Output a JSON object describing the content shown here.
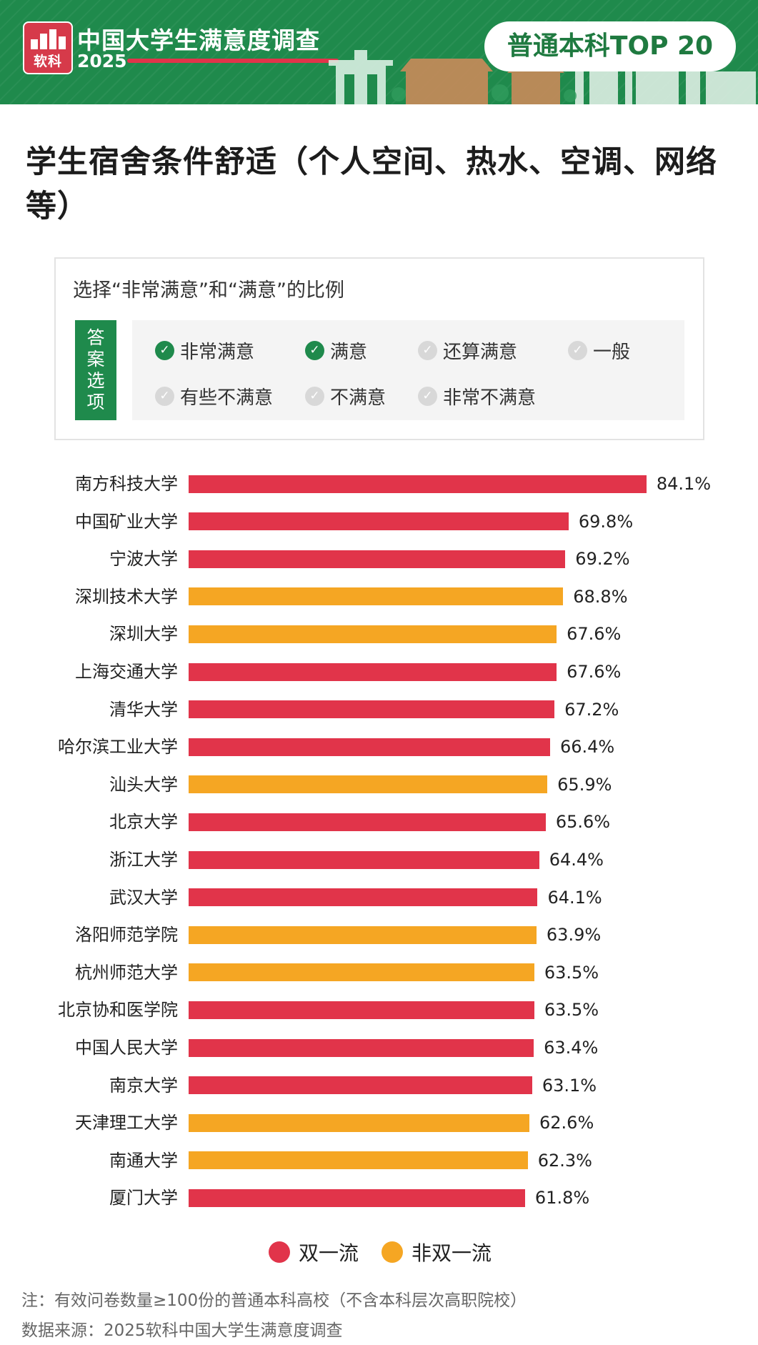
{
  "header": {
    "logo_text": "软科",
    "brand_title": "中国大学生满意度调查",
    "brand_year": "2025",
    "badge": "普通本科TOP 20",
    "colors": {
      "green": "#1f8a4c",
      "red": "#e1344a"
    }
  },
  "page_title": "学生宿舍条件舒适（个人空间、热水、空调、网络等）",
  "answer_box": {
    "caption": "选择“非常满意”和“满意”的比例",
    "tag_chars": [
      "答",
      "案",
      "选",
      "项"
    ],
    "options": [
      {
        "label": "非常满意",
        "checked": true
      },
      {
        "label": "满意",
        "checked": true
      },
      {
        "label": "还算满意",
        "checked": false
      },
      {
        "label": "一般",
        "checked": false
      },
      {
        "label": "有些不满意",
        "checked": false
      },
      {
        "label": "不满意",
        "checked": false
      },
      {
        "label": "非常不满意",
        "checked": false
      }
    ]
  },
  "chart_data": {
    "type": "bar",
    "orientation": "horizontal",
    "title": "学生宿舍条件舒适（个人空间、热水、空调、网络等）",
    "subtitle": "选择“非常满意”和“满意”的比例",
    "value_suffix": "%",
    "grid": false,
    "legend_position": "bottom",
    "categories": [
      "南方科技大学",
      "中国矿业大学",
      "宁波大学",
      "深圳技术大学",
      "深圳大学",
      "上海交通大学",
      "清华大学",
      "哈尔滨工业大学",
      "汕头大学",
      "北京大学",
      "浙江大学",
      "武汉大学",
      "洛阳师范学院",
      "杭州师范大学",
      "北京协和医学院",
      "中国人民大学",
      "南京大学",
      "天津理工大学",
      "南通大学",
      "厦门大学"
    ],
    "values": [
      84.1,
      69.8,
      69.2,
      68.8,
      67.6,
      67.6,
      67.2,
      66.4,
      65.9,
      65.6,
      64.4,
      64.1,
      63.9,
      63.5,
      63.5,
      63.4,
      63.1,
      62.6,
      62.3,
      61.8
    ],
    "labels": [
      "84.1%",
      "69.8%",
      "69.2%",
      "68.8%",
      "67.6%",
      "67.6%",
      "67.2%",
      "66.4%",
      "65.9%",
      "65.6%",
      "64.4%",
      "64.1%",
      "63.9%",
      "63.5%",
      "63.5%",
      "63.4%",
      "63.1%",
      "62.6%",
      "62.3%",
      "61.8%"
    ],
    "groups": [
      0,
      0,
      0,
      1,
      1,
      0,
      0,
      0,
      1,
      0,
      0,
      0,
      1,
      1,
      0,
      0,
      0,
      1,
      1,
      0
    ],
    "series": [
      {
        "name": "双一流",
        "color": "#e1344a"
      },
      {
        "name": "非双一流",
        "color": "#f5a623"
      }
    ]
  },
  "notes": {
    "note": "注：有效问卷数量≥100份的普通本科高校（不含本科层次高职院校）",
    "source": "数据来源：2025软科中国大学生满意度调查"
  }
}
